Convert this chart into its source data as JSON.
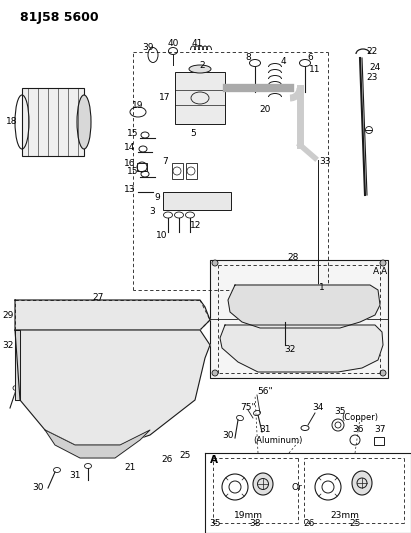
{
  "title": "81J58 5600",
  "bg_color": "#ffffff",
  "fig_width": 4.11,
  "fig_height": 5.33,
  "dpi": 100,
  "line_color": "#1a1a1a",
  "text_color": "#000000",
  "label_fontsize": 6.5,
  "title_fontsize": 9,
  "labels": {
    "aluminum": "(Aluminum)",
    "copper": "(Copper)",
    "A_label1": "19mm",
    "A_label2": "23mm",
    "A_or": "Or",
    "A_section": "A",
    "title": "81J58 5600",
    "deg56": "56\"",
    "deg75": "75\""
  }
}
